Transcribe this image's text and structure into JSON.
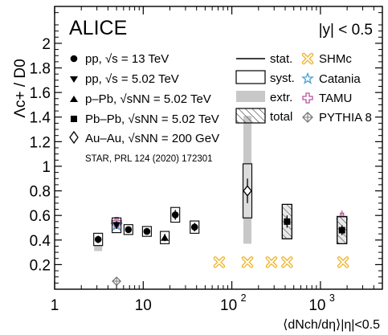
{
  "chart_data": {
    "type": "scatter",
    "title": "ALICE",
    "rapidity_cut": "|y| < 0.5",
    "ylabel": "Λc+ / D0",
    "xlabel": "⟨dNch/dη⟩|η|<0.5",
    "x_scale": "log",
    "xlim": [
      1,
      5000
    ],
    "ylim": [
      0,
      2.3
    ],
    "x_tick_labels": [
      {
        "value": 1,
        "base": "1",
        "exp": ""
      },
      {
        "value": 10,
        "base": "10",
        "exp": ""
      },
      {
        "value": 100,
        "base": "10",
        "exp": "2"
      },
      {
        "value": 1000,
        "base": "10",
        "exp": "3"
      }
    ],
    "y_ticks": [
      0.2,
      0.4,
      0.6,
      0.8,
      1,
      1.2,
      1.4,
      1.6,
      1.8,
      2
    ],
    "grid": false,
    "legend_placement": "top",
    "legend": {
      "systems": [
        {
          "marker": "circle",
          "label": "pp, √s = 13 TeV"
        },
        {
          "marker": "triangle-down",
          "label": "pp, √s = 5.02 TeV"
        },
        {
          "marker": "triangle-up",
          "label": "p–Pb, √sNN = 5.02 TeV"
        },
        {
          "marker": "square",
          "label": "Pb–Pb, √sNN = 5.02 TeV"
        },
        {
          "marker": "diamond-open",
          "label": "Au–Au, √sNN = 200 GeV"
        }
      ],
      "star_reference": "STAR, PRL 124 (2020) 172301",
      "uncertainties": [
        "stat.",
        "syst.",
        "extr.",
        "total"
      ],
      "models": [
        {
          "name": "SHMc",
          "marker": "x-open",
          "color": "#f0b429"
        },
        {
          "name": "Catania",
          "marker": "star-open",
          "color": "#4a9fd4"
        },
        {
          "name": "TAMU",
          "marker": "cross-open",
          "color": "#b9539a"
        },
        {
          "name": "PYTHIA 8",
          "marker": "diamond-plus",
          "color": "#777777"
        }
      ]
    },
    "series": [
      {
        "marker": "circle",
        "points": [
          {
            "x": 3.1,
            "y": 0.405,
            "stat": 0.03,
            "syst": 0.05
          },
          {
            "x": 6.8,
            "y": 0.485,
            "stat": 0.025,
            "syst": 0.04
          },
          {
            "x": 11.0,
            "y": 0.47,
            "stat": 0.025,
            "syst": 0.04
          },
          {
            "x": 23.0,
            "y": 0.605,
            "stat": 0.04,
            "syst": 0.06
          },
          {
            "x": 38.0,
            "y": 0.505,
            "stat": 0.035,
            "syst": 0.05
          }
        ]
      },
      {
        "marker": "triangle-down",
        "points": [
          {
            "x": 5.0,
            "y": 0.52,
            "stat": 0.03,
            "syst": 0.06
          }
        ]
      },
      {
        "marker": "triangle-up",
        "points": [
          {
            "x": 17.5,
            "y": 0.42,
            "stat": 0.03,
            "syst": 0.05
          }
        ]
      },
      {
        "marker": "square",
        "points": [
          {
            "x": 420,
            "y": 0.55,
            "stat": 0.05,
            "total": 0.14
          },
          {
            "x": 1750,
            "y": 0.48,
            "stat": 0.04,
            "total": 0.11
          }
        ]
      },
      {
        "marker": "diamond-open",
        "points": [
          {
            "x": 150,
            "y": 0.8,
            "stat": 0.1,
            "syst": 0.22,
            "extr_low": 0.37,
            "extr_high": 1.41
          }
        ]
      }
    ],
    "extrapolation": [
      {
        "x": 3.1,
        "low": 0.31,
        "high": 0.36
      }
    ],
    "models": [
      {
        "name": "SHMc",
        "points": [
          {
            "x": 72,
            "y": 0.22
          },
          {
            "x": 150,
            "y": 0.22
          },
          {
            "x": 280,
            "y": 0.22
          },
          {
            "x": 420,
            "y": 0.22
          },
          {
            "x": 1800,
            "y": 0.22
          }
        ]
      },
      {
        "name": "Catania",
        "points": [
          {
            "x": 5.0,
            "y": 0.52
          },
          {
            "x": 1750,
            "y": 0.555
          }
        ]
      },
      {
        "name": "TAMU",
        "points": [
          {
            "x": 5.0,
            "y": 0.545,
            "low": 0.49,
            "high": 0.58
          },
          {
            "x": 420,
            "y": 0.55,
            "low": 0.52,
            "high": 0.58
          },
          {
            "x": 1750,
            "y": 0.58,
            "low": 0.52,
            "high": 0.64
          }
        ]
      },
      {
        "name": "PYTHIA 8",
        "points": [
          {
            "x": 5.0,
            "y": 0.065
          }
        ]
      }
    ]
  },
  "colors": {
    "shmc": "#f0b429",
    "catania": "#4a9fd4",
    "tamu": "#b9539a",
    "pythia": "#777777",
    "extr": "#c8c8c8",
    "total_fill": "#e8e8e8"
  }
}
